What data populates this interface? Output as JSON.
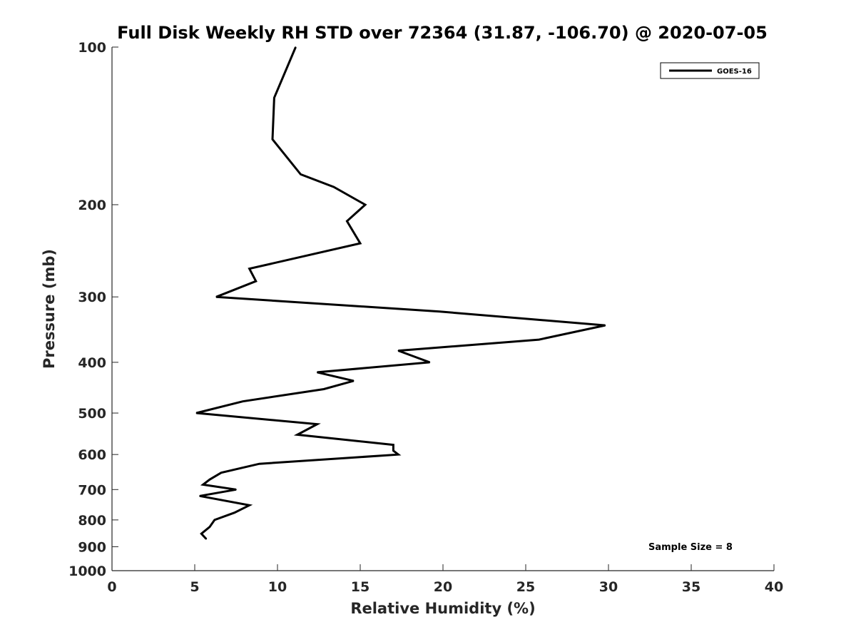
{
  "chart_data": {
    "type": "line",
    "title": "Full Disk Weekly RH STD over 72364 (31.87, -106.70) @ 2020-07-05",
    "xlabel": "Relative Humidity (%)",
    "ylabel": "Pressure (mb)",
    "xlim": [
      0,
      40
    ],
    "ylim": [
      100,
      1000
    ],
    "y_scale": "log",
    "y_inverted": true,
    "grid": false,
    "legend_position": "top-right",
    "x_ticks": [
      "0",
      "5",
      "10",
      "15",
      "20",
      "25",
      "30",
      "35",
      "40"
    ],
    "y_ticks": [
      "100",
      "200",
      "300",
      "400",
      "500",
      "600",
      "700",
      "800",
      "900",
      "1000"
    ],
    "annotation": "Sample Size = 8",
    "series": [
      {
        "name": "GOES-16",
        "color": "#000000",
        "points": [
          {
            "x": 11.1,
            "p": 100
          },
          {
            "x": 9.8,
            "p": 125
          },
          {
            "x": 9.7,
            "p": 150
          },
          {
            "x": 11.4,
            "p": 175
          },
          {
            "x": 13.4,
            "p": 185
          },
          {
            "x": 15.3,
            "p": 200
          },
          {
            "x": 14.2,
            "p": 215
          },
          {
            "x": 15.0,
            "p": 237
          },
          {
            "x": 8.3,
            "p": 265
          },
          {
            "x": 8.7,
            "p": 280
          },
          {
            "x": 6.3,
            "p": 300
          },
          {
            "x": 19.8,
            "p": 320
          },
          {
            "x": 29.8,
            "p": 340
          },
          {
            "x": 25.8,
            "p": 362
          },
          {
            "x": 17.3,
            "p": 380
          },
          {
            "x": 19.2,
            "p": 400
          },
          {
            "x": 12.4,
            "p": 418
          },
          {
            "x": 14.6,
            "p": 434
          },
          {
            "x": 12.8,
            "p": 450
          },
          {
            "x": 7.9,
            "p": 475
          },
          {
            "x": 5.1,
            "p": 500
          },
          {
            "x": 12.4,
            "p": 525
          },
          {
            "x": 11.2,
            "p": 550
          },
          {
            "x": 17.0,
            "p": 575
          },
          {
            "x": 17.0,
            "p": 590
          },
          {
            "x": 17.3,
            "p": 600
          },
          {
            "x": 8.9,
            "p": 625
          },
          {
            "x": 6.6,
            "p": 650
          },
          {
            "x": 5.9,
            "p": 670
          },
          {
            "x": 5.5,
            "p": 685
          },
          {
            "x": 7.5,
            "p": 700
          },
          {
            "x": 5.3,
            "p": 720
          },
          {
            "x": 8.3,
            "p": 750
          },
          {
            "x": 7.4,
            "p": 775
          },
          {
            "x": 6.2,
            "p": 800
          },
          {
            "x": 5.9,
            "p": 825
          },
          {
            "x": 5.4,
            "p": 850
          },
          {
            "x": 5.7,
            "p": 870
          }
        ]
      }
    ]
  }
}
